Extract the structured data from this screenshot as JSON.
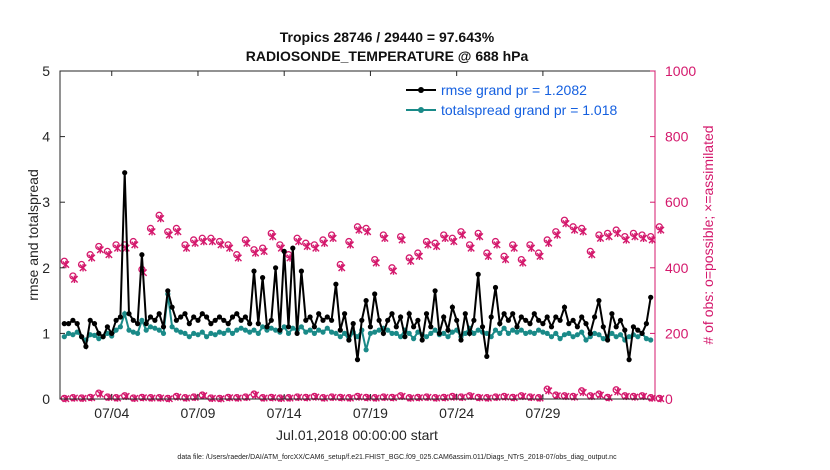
{
  "chart_data": {
    "type": "line",
    "title_line1": "Tropics 28746 / 29440 = 97.643%",
    "title_line2": "RADIOSONDE_TEMPERATURE @ 688 hPa",
    "xlabel": "Jul.01,2018 00:00:00 start",
    "ylabel_left": "rmse and totalspread",
    "ylabel_right": "# of obs: o=possible; ×=assimilated",
    "ylim_left": [
      0,
      5
    ],
    "ylim_right": [
      0,
      1000
    ],
    "xlim": [
      0,
      34.5
    ],
    "x_ticks": [
      {
        "day": 3,
        "label": "07/04"
      },
      {
        "day": 8,
        "label": "07/09"
      },
      {
        "day": 13,
        "label": "07/14"
      },
      {
        "day": 18,
        "label": "07/19"
      },
      {
        "day": 23,
        "label": "07/24"
      },
      {
        "day": 28,
        "label": "07/29"
      }
    ],
    "y_ticks_left": [
      "0",
      "1",
      "2",
      "3",
      "4",
      "5"
    ],
    "y_ticks_right": [
      "0",
      "200",
      "400",
      "600",
      "800",
      "1000"
    ],
    "x_step_days": 0.25,
    "series": [
      {
        "name": "rmse",
        "legend": "rmse grand pr = 1.2082",
        "color": "#000000",
        "axis": "left",
        "values": [
          1.15,
          1.15,
          1.2,
          1.15,
          0.95,
          0.8,
          1.2,
          1.15,
          1.0,
          0.95,
          1.1,
          1.0,
          1.2,
          1.25,
          3.45,
          1.3,
          1.2,
          1.15,
          2.2,
          1.15,
          1.25,
          1.2,
          1.3,
          1.1,
          1.65,
          1.4,
          1.2,
          1.25,
          1.3,
          1.15,
          1.25,
          1.2,
          1.3,
          1.25,
          1.15,
          1.2,
          1.25,
          1.2,
          1.15,
          1.25,
          1.3,
          1.2,
          1.25,
          1.15,
          1.95,
          1.15,
          1.85,
          1.1,
          1.2,
          2.0,
          1.05,
          2.25,
          1.1,
          2.3,
          1.0,
          1.95,
          1.2,
          1.25,
          1.1,
          1.3,
          1.2,
          1.25,
          1.2,
          1.75,
          1.05,
          1.3,
          0.9,
          1.15,
          0.6,
          1.2,
          1.5,
          1.1,
          1.6,
          1.2,
          1.0,
          1.2,
          1.3,
          1.1,
          1.25,
          0.95,
          1.3,
          1.1,
          1.2,
          0.9,
          1.3,
          1.1,
          1.65,
          1.0,
          1.25,
          1.05,
          1.4,
          1.2,
          0.9,
          1.3,
          1.0,
          1.2,
          1.9,
          1.1,
          0.65,
          1.25,
          1.7,
          1.15,
          1.3,
          1.2,
          1.3,
          1.1,
          1.25,
          1.2,
          1.15,
          1.3,
          1.2,
          1.15,
          1.25,
          1.1,
          1.25,
          1.2,
          1.4,
          1.15,
          1.2,
          1.1,
          1.25,
          1.15,
          1.0,
          1.25,
          1.5,
          1.1,
          0.9,
          1.3,
          1.1,
          1.2,
          1.05,
          0.6,
          1.1,
          1.05,
          1.0,
          1.15,
          1.55
        ]
      },
      {
        "name": "totalspread",
        "legend": "totalspread grand pr = 1.018",
        "color": "#1a8a88",
        "axis": "left",
        "values": [
          0.95,
          1.0,
          0.98,
          1.02,
          0.95,
          0.9,
          0.98,
          0.97,
          0.92,
          0.95,
          1.0,
          0.96,
          1.05,
          1.1,
          1.3,
          1.05,
          1.02,
          1.0,
          1.2,
          1.05,
          1.1,
          1.08,
          1.05,
          1.0,
          1.6,
          1.1,
          1.05,
          1.02,
          1.0,
          0.95,
          1.0,
          0.98,
          1.02,
          0.95,
          1.0,
          0.98,
          1.02,
          1.0,
          1.05,
          1.0,
          1.05,
          1.08,
          1.05,
          1.02,
          1.05,
          1.0,
          1.1,
          1.05,
          1.08,
          1.05,
          1.02,
          1.1,
          1.0,
          1.08,
          1.05,
          1.1,
          1.02,
          1.05,
          1.0,
          1.05,
          1.02,
          1.08,
          1.02,
          1.0,
          0.95,
          1.0,
          0.9,
          1.02,
          0.95,
          1.05,
          0.75,
          1.0,
          1.02,
          1.05,
          1.08,
          1.05,
          1.0,
          1.0,
          0.95,
          1.05,
          1.0,
          0.92,
          1.02,
          0.98,
          0.95,
          1.0,
          1.05,
          0.98,
          1.0,
          0.95,
          1.02,
          1.05,
          0.95,
          1.0,
          1.08,
          1.0,
          1.05,
          1.02,
          1.0,
          0.95,
          1.05,
          1.0,
          1.08,
          1.0,
          1.05,
          1.02,
          1.05,
          1.0,
          1.02,
          1.0,
          1.05,
          1.02,
          1.0,
          0.95,
          1.0,
          0.92,
          0.98,
          1.0,
          0.95,
          0.98,
          1.02,
          0.9,
          0.95,
          1.0,
          0.98,
          0.92,
          0.95,
          1.0,
          0.95,
          0.98,
          0.9,
          0.95,
          0.98,
          0.95,
          1.0,
          0.92,
          0.9
        ]
      }
    ],
    "obs_possible": [
      420,
      375,
      410,
      440,
      465,
      450,
      470,
      470,
      480,
      395,
      520,
      560,
      510,
      520,
      470,
      485,
      490,
      490,
      480,
      470,
      440,
      485,
      455,
      460,
      505,
      470,
      440,
      490,
      475,
      470,
      485,
      500,
      410,
      480,
      525,
      520,
      425,
      500,
      400,
      495,
      430,
      445,
      480,
      475,
      500,
      490,
      510,
      470,
      505,
      445,
      480,
      435,
      470,
      425,
      470,
      445,
      485,
      510,
      545,
      525,
      520,
      450,
      500,
      505,
      515,
      495,
      505,
      500,
      495,
      525
    ],
    "obs_assimilated": [
      410,
      365,
      400,
      430,
      455,
      440,
      460,
      460,
      470,
      385,
      510,
      550,
      500,
      510,
      460,
      475,
      480,
      480,
      470,
      460,
      430,
      475,
      445,
      450,
      495,
      460,
      430,
      480,
      465,
      460,
      475,
      490,
      400,
      470,
      515,
      510,
      415,
      490,
      390,
      485,
      420,
      435,
      470,
      465,
      490,
      480,
      500,
      460,
      495,
      435,
      470,
      425,
      460,
      415,
      460,
      435,
      475,
      500,
      535,
      515,
      510,
      440,
      490,
      495,
      505,
      485,
      495,
      490,
      485,
      515
    ],
    "obs_bottom_possible": [
      2,
      4,
      3,
      5,
      18,
      6,
      4,
      10,
      3,
      5,
      4,
      4,
      2,
      8,
      4,
      6,
      12,
      3,
      2,
      5,
      4,
      6,
      15,
      4,
      5,
      3,
      4,
      6,
      5,
      8,
      4,
      6,
      5,
      4,
      8,
      5,
      4,
      6,
      5,
      10,
      4,
      5,
      6,
      4,
      5,
      8,
      6,
      10,
      5,
      4,
      6,
      8,
      5,
      10,
      6,
      4,
      30,
      12,
      10,
      8,
      25,
      10,
      15,
      5,
      28,
      10,
      8,
      10,
      4,
      2
    ],
    "obs_bottom_assimilated": [
      1,
      3,
      2,
      4,
      15,
      5,
      3,
      8,
      2,
      4,
      3,
      3,
      1,
      6,
      3,
      5,
      10,
      2,
      1,
      4,
      3,
      5,
      12,
      3,
      4,
      2,
      3,
      5,
      4,
      6,
      3,
      5,
      4,
      3,
      6,
      4,
      3,
      5,
      4,
      8,
      3,
      4,
      5,
      3,
      4,
      6,
      5,
      8,
      4,
      3,
      5,
      6,
      4,
      8,
      5,
      3,
      25,
      10,
      8,
      6,
      20,
      8,
      12,
      4,
      22,
      8,
      6,
      8,
      3,
      1
    ],
    "obs_step_days": 0.5,
    "footer": "data file: /Users/raeder/DAI/ATM_forcXX/CAM6_setup/f.e21.FHIST_BGC.f09_025.CAM6assim.011/Diags_NTrS_2018-07/obs_diag_output.nc",
    "colors": {
      "rmse": "#000000",
      "spread": "#1a8a88",
      "obs": "#d4186c",
      "legend_text": "#1560e0"
    }
  }
}
